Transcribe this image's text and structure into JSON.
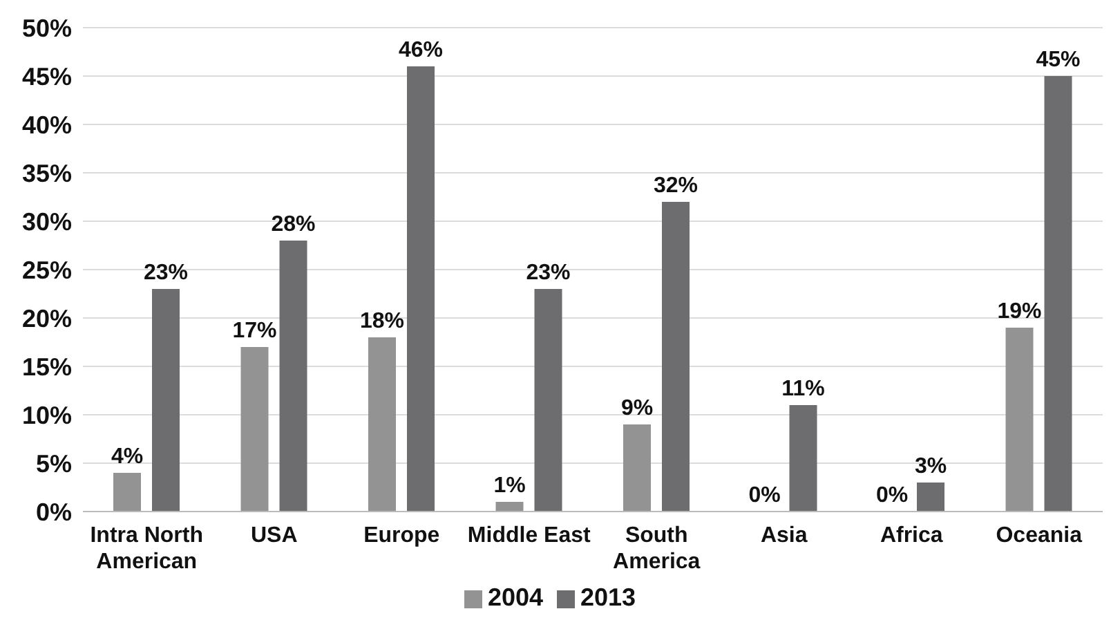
{
  "chart_data": {
    "type": "bar",
    "categories": [
      "Intra North American",
      "USA",
      "Europe",
      "Middle East",
      "South America",
      "Asia",
      "Africa",
      "Oceania"
    ],
    "series": [
      {
        "name": "2004",
        "color": "#939393",
        "values": [
          4,
          17,
          18,
          1,
          9,
          0,
          0,
          19
        ],
        "value_labels": [
          "4%",
          "17%",
          "18%",
          "1%",
          "9%",
          "0%",
          "0%",
          "19%"
        ]
      },
      {
        "name": "2013",
        "color": "#6d6d70",
        "values": [
          23,
          28,
          46,
          23,
          32,
          11,
          3,
          45
        ],
        "value_labels": [
          "23%",
          "28%",
          "46%",
          "23%",
          "32%",
          "11%",
          "3%",
          "45%"
        ]
      }
    ],
    "ylim": [
      0,
      50
    ],
    "yticks": [
      {
        "value": 0,
        "label": "0%"
      },
      {
        "value": 5,
        "label": "5%"
      },
      {
        "value": 10,
        "label": "10%"
      },
      {
        "value": 15,
        "label": "15%"
      },
      {
        "value": 20,
        "label": "20%"
      },
      {
        "value": 25,
        "label": "25%"
      },
      {
        "value": 30,
        "label": "30%"
      },
      {
        "value": 35,
        "label": "35%"
      },
      {
        "value": 40,
        "label": "40%"
      },
      {
        "value": 45,
        "label": "45%"
      },
      {
        "value": 50,
        "label": "50%"
      }
    ],
    "grid": "y",
    "legend": "bottom"
  }
}
